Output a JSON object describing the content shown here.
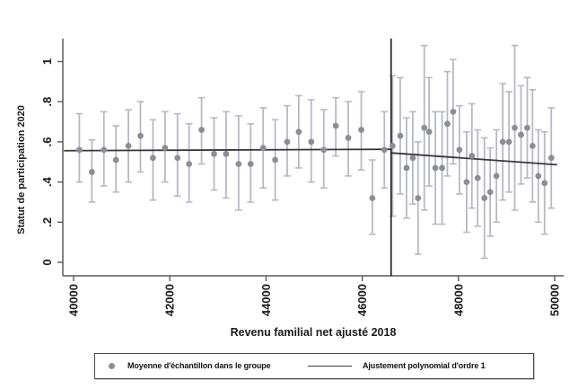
{
  "chart_data": {
    "type": "scatter",
    "title": "",
    "xlabel": "Revenu familial net ajusté 2018",
    "ylabel": "Statut de participation 2020",
    "xlim": [
      39780,
      50190
    ],
    "ylim": [
      0,
      1.1
    ],
    "grid": false,
    "x_ticks": {
      "values": [
        40000,
        42000,
        44000,
        46000,
        48000,
        50000
      ],
      "labels": [
        "40000",
        "42000",
        "44000",
        "46000",
        "48000",
        "50000"
      ],
      "rotation": 90
    },
    "y_ticks": {
      "values": [
        0,
        0.2,
        0.4,
        0.6,
        0.8,
        1
      ],
      "labels": [
        "0",
        ".2",
        ".4",
        ".6",
        ".8",
        "1"
      ],
      "rotation": 90
    },
    "cutoff_x": 46600,
    "colors": {
      "ci_bar": "#b7b7ca",
      "point": "#8d8d98",
      "fit_line": "#383838",
      "cutoff_line": "#1a1a1a",
      "axis": "#5a5a5a",
      "text": "#1a1a1a"
    },
    "series": [
      {
        "name": "Moyenne d'échantillon dans le groupe",
        "type": "scatter_with_ci",
        "note": "points are [x, y, ci_low, ci_high]",
        "points": [
          [
            40120,
            0.56,
            0.4,
            0.74
          ],
          [
            40380,
            0.45,
            0.3,
            0.61
          ],
          [
            40630,
            0.56,
            0.38,
            0.75
          ],
          [
            40880,
            0.51,
            0.35,
            0.68
          ],
          [
            41140,
            0.58,
            0.4,
            0.76
          ],
          [
            41390,
            0.63,
            0.45,
            0.8
          ],
          [
            41650,
            0.52,
            0.31,
            0.71
          ],
          [
            41900,
            0.57,
            0.4,
            0.75
          ],
          [
            42160,
            0.52,
            0.33,
            0.74
          ],
          [
            42400,
            0.49,
            0.3,
            0.69
          ],
          [
            42660,
            0.66,
            0.49,
            0.82
          ],
          [
            42920,
            0.54,
            0.36,
            0.72
          ],
          [
            43170,
            0.54,
            0.32,
            0.75
          ],
          [
            43430,
            0.49,
            0.26,
            0.73
          ],
          [
            43680,
            0.49,
            0.3,
            0.69
          ],
          [
            43940,
            0.57,
            0.37,
            0.77
          ],
          [
            44190,
            0.51,
            0.31,
            0.71
          ],
          [
            44440,
            0.6,
            0.43,
            0.78
          ],
          [
            44680,
            0.65,
            0.47,
            0.83
          ],
          [
            44940,
            0.6,
            0.4,
            0.81
          ],
          [
            45200,
            0.56,
            0.37,
            0.76
          ],
          [
            45450,
            0.68,
            0.53,
            0.82
          ],
          [
            45710,
            0.62,
            0.43,
            0.8
          ],
          [
            45980,
            0.66,
            0.46,
            0.85
          ],
          [
            46210,
            0.32,
            0.14,
            0.51
          ],
          [
            46460,
            0.56,
            0.37,
            0.75
          ],
          [
            46630,
            0.58,
            0.23,
            0.93
          ],
          [
            46790,
            0.63,
            0.34,
            0.92
          ],
          [
            46920,
            0.47,
            0.22,
            0.72
          ],
          [
            47050,
            0.52,
            0.29,
            0.75
          ],
          [
            47160,
            0.32,
            0.04,
            0.6
          ],
          [
            47290,
            0.67,
            0.26,
            1.08
          ],
          [
            47390,
            0.65,
            0.38,
            0.92
          ],
          [
            47520,
            0.47,
            0.19,
            0.75
          ],
          [
            47660,
            0.47,
            0.19,
            0.75
          ],
          [
            47770,
            0.69,
            0.43,
            0.95
          ],
          [
            47890,
            0.75,
            0.49,
            1.01
          ],
          [
            48020,
            0.56,
            0.34,
            0.78
          ],
          [
            48170,
            0.4,
            0.15,
            0.65
          ],
          [
            48280,
            0.53,
            0.27,
            0.79
          ],
          [
            48400,
            0.42,
            0.18,
            0.66
          ],
          [
            48540,
            0.32,
            0.02,
            0.62
          ],
          [
            48660,
            0.35,
            0.13,
            0.57
          ],
          [
            48790,
            0.43,
            0.2,
            0.66
          ],
          [
            48920,
            0.6,
            0.31,
            0.89
          ],
          [
            49050,
            0.6,
            0.35,
            0.85
          ],
          [
            49170,
            0.67,
            0.26,
            1.08
          ],
          [
            49300,
            0.635,
            0.39,
            0.88
          ],
          [
            49430,
            0.67,
            0.42,
            0.92
          ],
          [
            49540,
            0.58,
            0.3,
            0.86
          ],
          [
            49660,
            0.43,
            0.2,
            0.66
          ],
          [
            49790,
            0.395,
            0.14,
            0.65
          ],
          [
            49930,
            0.52,
            0.27,
            0.77
          ]
        ]
      },
      {
        "name": "Ajustement polynomial d'ordre 1",
        "type": "line_segments",
        "segments": [
          {
            "x1": 39800,
            "y1": 0.556,
            "x2": 46600,
            "y2": 0.563
          },
          {
            "x1": 46600,
            "y1": 0.545,
            "x2": 50050,
            "y2": 0.486
          }
        ]
      }
    ],
    "legend": {
      "position": "bottom",
      "entries": [
        {
          "marker": "dot",
          "label": "Moyenne d'échantillon dans le groupe"
        },
        {
          "marker": "line",
          "label": "Ajustement polynomial d'ordre 1"
        }
      ]
    }
  }
}
